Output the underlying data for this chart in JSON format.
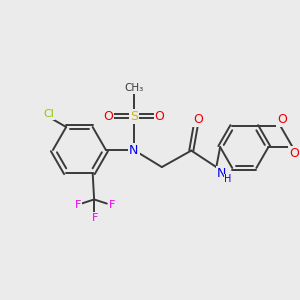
{
  "background_color": "#ebebeb",
  "fig_size": [
    3.0,
    3.0
  ],
  "dpi": 100,
  "atom_colors": {
    "C": "#3a3a3a",
    "N": "#0000ee",
    "O": "#ee0000",
    "S": "#ccbb00",
    "Cl": "#88cc00",
    "F": "#ee00ee",
    "H": "#0000ee"
  },
  "bond_color": "#3a3a3a",
  "bond_width": 1.4
}
